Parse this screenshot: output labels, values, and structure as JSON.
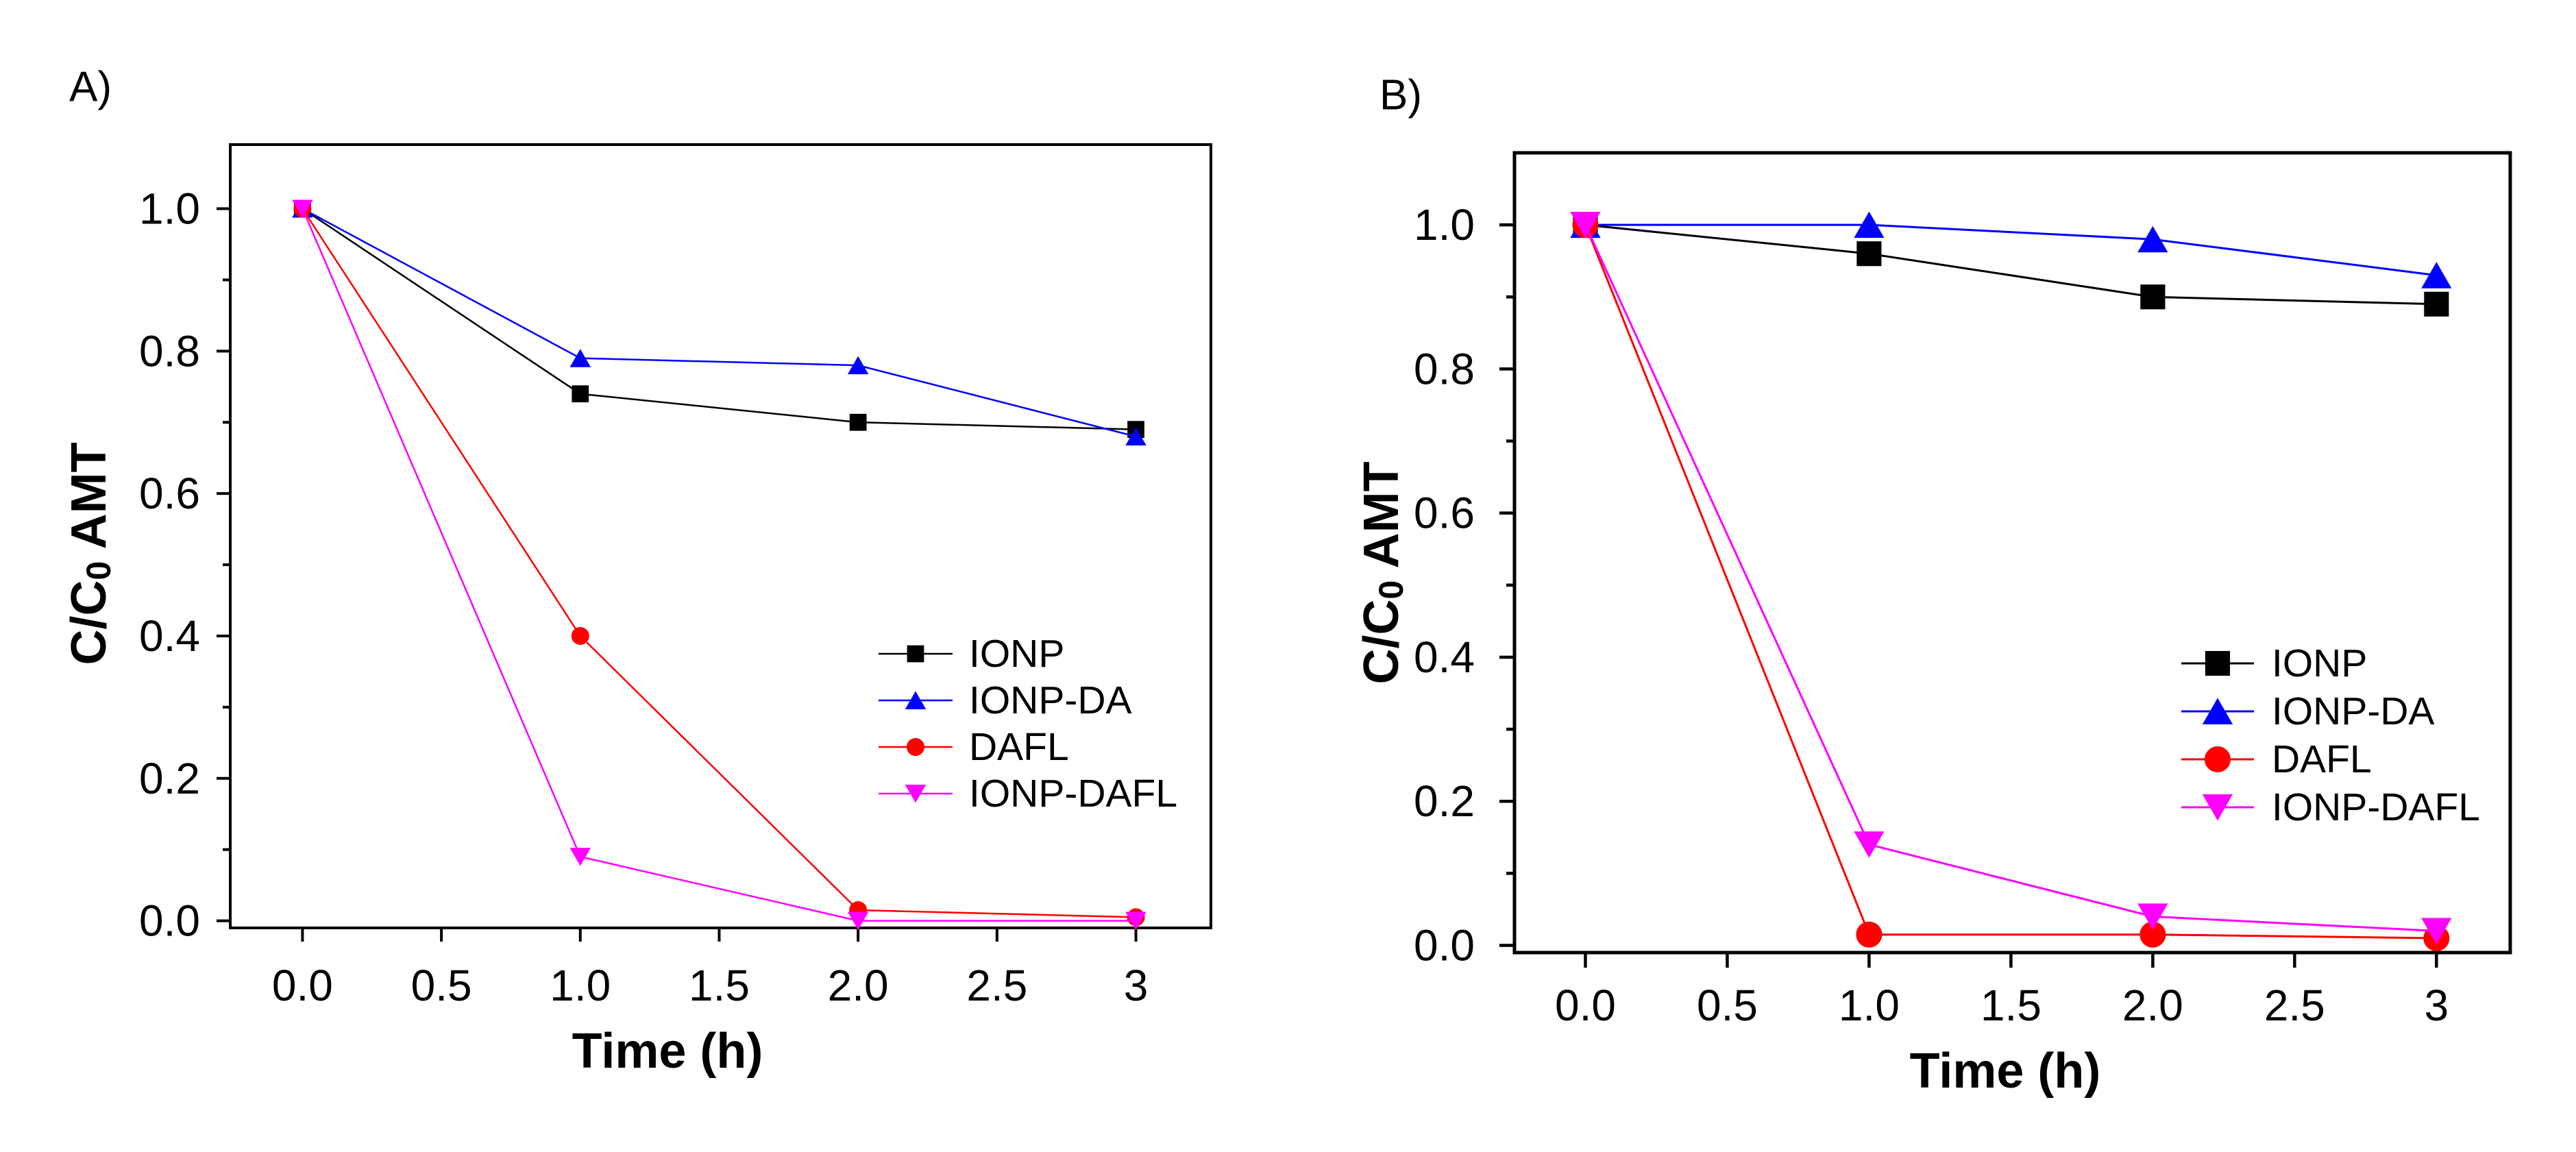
{
  "chart_data": [
    {
      "panel_label": "A)",
      "type": "line",
      "xlabel": "Time (h)",
      "ylabel": {
        "prefix": "C/C",
        "subscript": "0",
        "suffix": " AMT"
      },
      "x": [
        0,
        1,
        2,
        3
      ],
      "xlim": [
        -0.26,
        3.27
      ],
      "ylim": [
        -0.01,
        1.09
      ],
      "xticks": [
        0,
        0.5,
        1,
        1.5,
        2,
        2.5,
        3
      ],
      "xtick_labels": [
        "0.0",
        "0.5",
        "1.0",
        "1.5",
        "2.0",
        "2.5",
        "3"
      ],
      "yticks": [
        0,
        0.2,
        0.4,
        0.6,
        0.8,
        1.0
      ],
      "ytick_labels": [
        "0.0",
        "0.2",
        "0.4",
        "0.6",
        "0.8",
        "1.0"
      ],
      "y_minor_ticks": [
        0.1,
        0.3,
        0.5,
        0.7,
        0.9
      ],
      "grid": false,
      "legend_position": "lower-right",
      "series": [
        {
          "name": "IONP",
          "color": "#000000",
          "marker": "square",
          "values": [
            1.0,
            0.74,
            0.7,
            0.69
          ]
        },
        {
          "name": "IONP-DA",
          "color": "#0000ff",
          "marker": "triangle-up",
          "values": [
            1.0,
            0.79,
            0.78,
            0.68
          ]
        },
        {
          "name": "DAFL",
          "color": "#ff0000",
          "marker": "circle",
          "values": [
            1.0,
            0.4,
            0.015,
            0.005
          ]
        },
        {
          "name": "IONP-DAFL",
          "color": "#ff00ff",
          "marker": "triangle-down",
          "values": [
            1.0,
            0.09,
            0.0,
            0.0
          ]
        }
      ]
    },
    {
      "panel_label": "B)",
      "type": "line",
      "xlabel": "Time (h)",
      "ylabel": {
        "prefix": "C/C",
        "subscript": "0",
        "suffix": " AMT"
      },
      "x": [
        0,
        1,
        2,
        3
      ],
      "xlim": [
        -0.25,
        3.26
      ],
      "ylim": [
        -0.01,
        1.1
      ],
      "xticks": [
        0,
        0.5,
        1,
        1.5,
        2,
        2.5,
        3
      ],
      "xtick_labels": [
        "0.0",
        "0.5",
        "1.0",
        "1.5",
        "2.0",
        "2.5",
        "3"
      ],
      "yticks": [
        0,
        0.2,
        0.4,
        0.6,
        0.8,
        1.0
      ],
      "ytick_labels": [
        "0.0",
        "0.2",
        "0.4",
        "0.6",
        "0.8",
        "1.0"
      ],
      "y_minor_ticks": [
        0.1,
        0.3,
        0.5,
        0.7,
        0.9
      ],
      "grid": false,
      "legend_position": "lower-right",
      "series": [
        {
          "name": "IONP",
          "color": "#000000",
          "marker": "square",
          "values": [
            1.0,
            0.96,
            0.9,
            0.89
          ]
        },
        {
          "name": "IONP-DA",
          "color": "#0000ff",
          "marker": "triangle-up",
          "values": [
            1.0,
            1.0,
            0.98,
            0.93
          ]
        },
        {
          "name": "DAFL",
          "color": "#ff0000",
          "marker": "circle",
          "values": [
            1.0,
            0.015,
            0.015,
            0.01
          ]
        },
        {
          "name": "IONP-DAFL",
          "color": "#ff00ff",
          "marker": "triangle-down",
          "values": [
            1.0,
            0.14,
            0.04,
            0.02
          ]
        }
      ]
    }
  ]
}
